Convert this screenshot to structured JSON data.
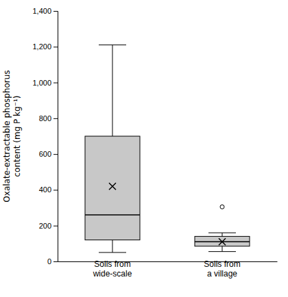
{
  "chart_data": {
    "type": "box",
    "ylabel": "Oxalate-extractable phosphorus\ncontent (mg P kg⁻¹)",
    "categories": [
      "Soils from\nwide-scale",
      "Soils from\na village"
    ],
    "boxes": [
      {
        "whisker_low": 50,
        "q1": 120,
        "median": 260,
        "q3": 700,
        "whisker_high": 1210,
        "mean": 420,
        "fliers": []
      },
      {
        "whisker_low": 55,
        "q1": 85,
        "median": 110,
        "q3": 140,
        "whisker_high": 160,
        "mean": 110,
        "fliers": [
          305
        ]
      }
    ],
    "color": "#c8c8c8",
    "ylim": [
      0,
      1400
    ],
    "yticks": [
      0,
      200,
      400,
      600,
      800,
      {
        "value": 1000,
        "label": "1,000"
      },
      {
        "value": 1200,
        "label": "1,200"
      },
      {
        "value": 1400,
        "label": "1,400"
      }
    ],
    "grid": false
  }
}
